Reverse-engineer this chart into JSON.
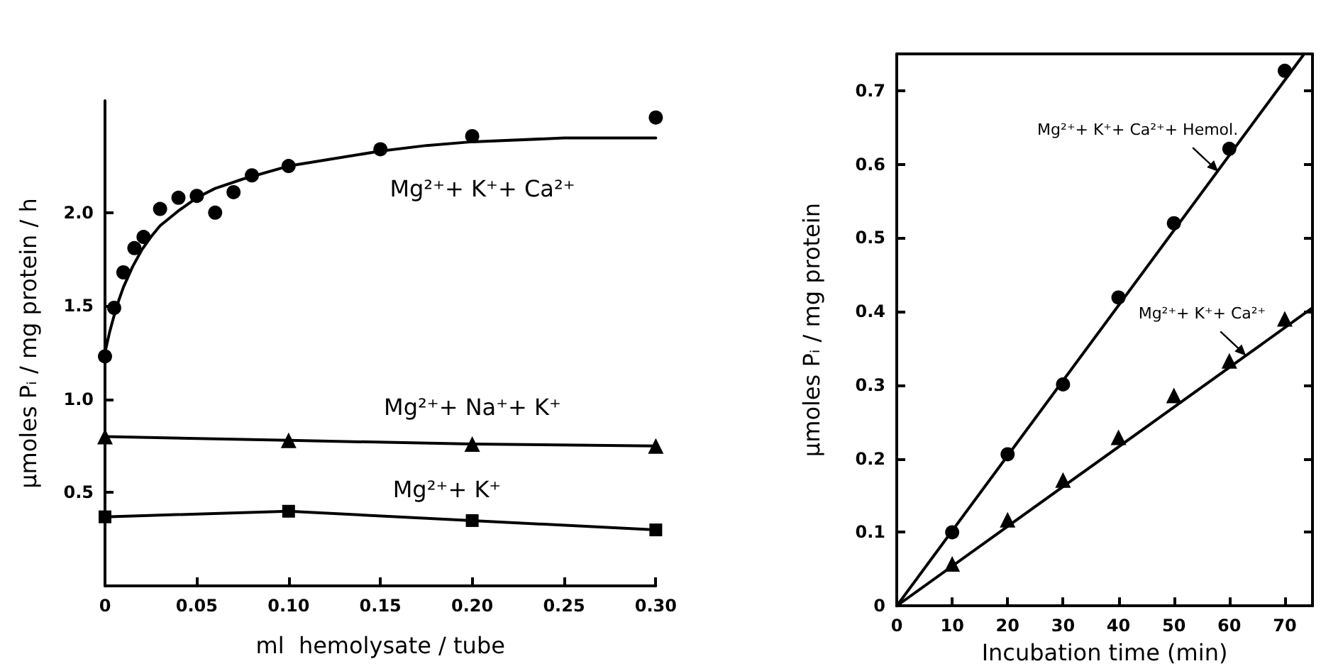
{
  "chart_data": [
    {
      "type": "scatter",
      "xlabel": "ml  hemolysate / tube",
      "ylabel": "μmoles Pᵢ / mg protein / h",
      "xlim": [
        0,
        0.3
      ],
      "ylim": [
        0,
        2.6
      ],
      "xticks": [
        0,
        0.05,
        {
          "value": 0.1,
          "label": "0.10"
        },
        0.15,
        {
          "value": 0.2,
          "label": "0.20"
        },
        0.25,
        {
          "value": 0.3,
          "label": "0.30"
        }
      ],
      "yticks": [
        {
          "value": 0,
          "label": null
        },
        0.5,
        {
          "value": 1,
          "label": "1.0"
        },
        1.5,
        {
          "value": 2,
          "label": "2.0"
        }
      ],
      "grid": false,
      "series": [
        {
          "type": "scatter",
          "marker": "circle",
          "color": "#000000",
          "x": [
            0,
            0.005,
            0.01,
            0.016,
            0.021,
            0.03,
            0.04,
            0.05,
            0.06,
            0.07,
            0.08,
            0.1,
            0.15,
            0.2,
            0.3
          ],
          "values": [
            1.23,
            1.49,
            1.68,
            1.81,
            1.87,
            2.02,
            2.08,
            2.09,
            2.0,
            2.11,
            2.2,
            2.25,
            2.34,
            2.41,
            2.51
          ]
        },
        {
          "type": "line",
          "marker": "none",
          "line_style": "solid",
          "color": "#000000",
          "x": [
            0,
            0.0025,
            0.005,
            0.0075,
            0.01,
            0.015,
            0.02,
            0.025,
            0.03,
            0.04,
            0.05,
            0.06,
            0.075,
            0.1,
            0.125,
            0.15,
            0.175,
            0.2,
            0.25,
            0.3
          ],
          "values": [
            1.25,
            1.36,
            1.45,
            1.53,
            1.6,
            1.71,
            1.8,
            1.87,
            1.93,
            2.01,
            2.08,
            2.13,
            2.18,
            2.25,
            2.29,
            2.33,
            2.36,
            2.38,
            2.4,
            2.4
          ]
        },
        {
          "type": "line",
          "marker": "triangle",
          "line_style": "solid",
          "color": "#000000",
          "x": [
            0,
            0.1,
            0.2,
            0.3
          ],
          "values": [
            0.8,
            0.78,
            0.76,
            0.75
          ]
        },
        {
          "type": "line",
          "marker": "square",
          "line_style": "solid",
          "color": "#000000",
          "x": [
            0,
            0.1,
            0.2,
            0.3
          ],
          "values": [
            0.37,
            0.4,
            0.35,
            0.3
          ]
        }
      ],
      "annotations": [
        "Mg²⁺+ K⁺+ Ca²⁺",
        "Mg²⁺+ Na⁺+ K⁺",
        "Mg²⁺+ K⁺"
      ]
    },
    {
      "type": "scatter",
      "xlabel": "Incubation time (min)",
      "ylabel": "μmoles Pᵢ / mg protein",
      "xlim": [
        0,
        75
      ],
      "ylim": [
        0,
        0.75
      ],
      "xticks": [
        0,
        10,
        20,
        30,
        40,
        50,
        60,
        70
      ],
      "yticks": [
        0,
        0.1,
        0.2,
        0.3,
        0.4,
        0.5,
        0.6,
        0.7
      ],
      "grid": false,
      "series": [
        {
          "type": "scatter",
          "marker": "circle",
          "color": "#000000",
          "x": [
            10,
            20,
            30,
            40,
            50,
            60,
            70
          ],
          "values": [
            0.1,
            0.206,
            0.301,
            0.419,
            0.52,
            0.621,
            0.727
          ]
        },
        {
          "type": "line",
          "marker": "none",
          "line_style": "solid",
          "color": "#000000",
          "x": [
            0,
            73.5
          ],
          "values": [
            0,
            0.75
          ]
        },
        {
          "type": "scatter",
          "marker": "triangle",
          "color": "#000000",
          "x": [
            10,
            20,
            30,
            40,
            50,
            60,
            70
          ],
          "values": [
            0.057,
            0.117,
            0.171,
            0.229,
            0.286,
            0.333,
            0.39
          ]
        },
        {
          "type": "line",
          "marker": "none",
          "line_style": "solid",
          "color": "#000000",
          "x": [
            0,
            75
          ],
          "values": [
            0,
            0.405
          ]
        }
      ],
      "annotations": [
        {
          "text": "Mg²⁺+ K⁺+ Ca²⁺+ Hemol.",
          "x": 58,
          "y": 0.59
        },
        {
          "text": "Mg²⁺+ K⁺+ Ca²⁺",
          "x": 63,
          "y": 0.34
        }
      ]
    }
  ]
}
